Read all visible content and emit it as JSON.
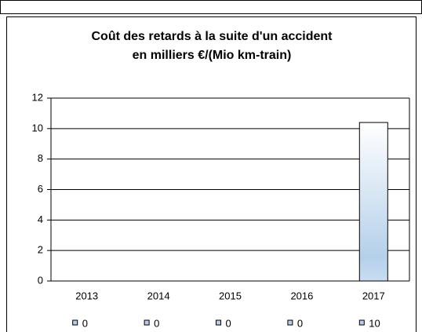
{
  "chart_data": {
    "type": "bar",
    "title": "Coût des retards à la suite d'un accident",
    "subtitle": "en milliers €/(Mio km-train)",
    "categories": [
      "2013",
      "2014",
      "2015",
      "2016",
      "2017"
    ],
    "values": [
      0,
      0,
      0,
      0,
      10.4
    ],
    "value_labels": [
      "0",
      "0",
      "0",
      "0",
      "10"
    ],
    "color": "#b4d0ea",
    "ylim": [
      0,
      12
    ],
    "yticks": [
      0,
      2,
      4,
      6,
      8,
      10,
      12
    ],
    "grid": true
  }
}
